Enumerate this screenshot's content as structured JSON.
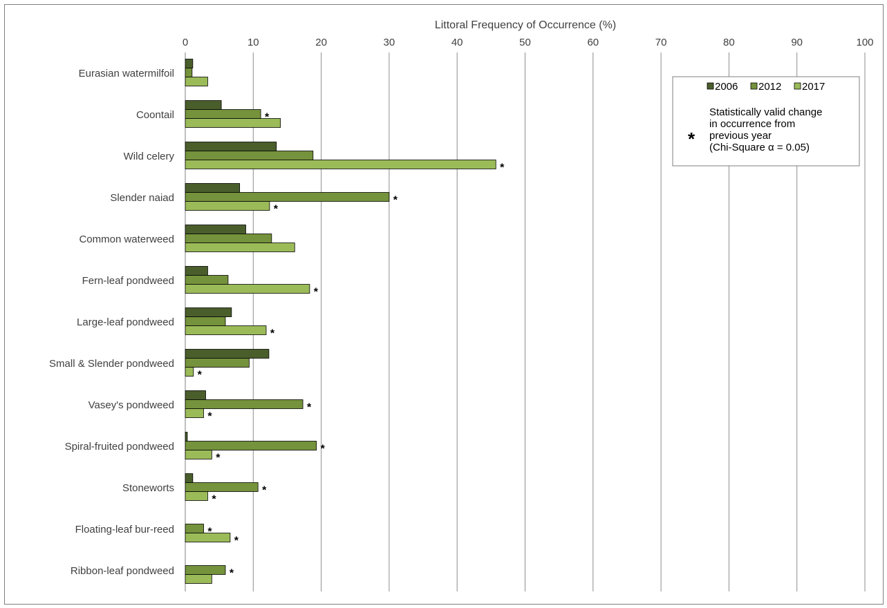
{
  "chart_data": {
    "type": "bar",
    "orientation": "horizontal",
    "title": "",
    "xlabel": "Littoral Frequency of Occurrence (%)",
    "ylabel": "",
    "xlim": [
      0,
      100
    ],
    "x_ticks": [
      0,
      10,
      20,
      30,
      40,
      50,
      60,
      70,
      80,
      90,
      100
    ],
    "x_axis_position": "top",
    "grid": true,
    "legend_position": "top-right",
    "categories": [
      "Eurasian watermilfoil",
      "Coontail",
      "Wild celery",
      "Slender naiad",
      "Common waterweed",
      "Fern-leaf pondweed",
      "Large-leaf pondweed",
      "Small & Slender pondweed",
      "Vasey's pondweed",
      "Spiral-fruited pondweed",
      "Stoneworts",
      "Floating-leaf bur-reed",
      "Ribbon-leaf pondweed"
    ],
    "series": [
      {
        "name": "2006",
        "color": "#4a5e2c",
        "values": [
          1.1,
          5.3,
          13.4,
          8.0,
          8.9,
          3.3,
          6.8,
          12.3,
          3.0,
          0.3,
          1.1,
          0.0,
          0.0
        ],
        "significant": [
          false,
          false,
          false,
          false,
          false,
          false,
          false,
          false,
          false,
          false,
          false,
          false,
          false
        ]
      },
      {
        "name": "2012",
        "color": "#75923c",
        "values": [
          1.0,
          11.1,
          18.8,
          30.0,
          12.7,
          6.3,
          5.9,
          9.4,
          17.3,
          19.3,
          10.7,
          2.7,
          5.9
        ],
        "significant": [
          false,
          true,
          false,
          true,
          false,
          false,
          false,
          false,
          true,
          true,
          true,
          true,
          true
        ]
      },
      {
        "name": "2017",
        "color": "#9bbb59",
        "values": [
          3.3,
          14.0,
          45.7,
          12.4,
          16.1,
          18.3,
          11.9,
          1.2,
          2.7,
          3.9,
          3.3,
          6.6,
          3.9
        ],
        "significant": [
          false,
          false,
          true,
          true,
          false,
          true,
          true,
          true,
          true,
          true,
          true,
          true,
          false
        ]
      }
    ],
    "significance_marker": "*",
    "legend": {
      "note_lines": [
        "Statistically valid change",
        "in occurrence from",
        "previous year",
        "(Chi-Square  α = 0.05)"
      ]
    }
  }
}
